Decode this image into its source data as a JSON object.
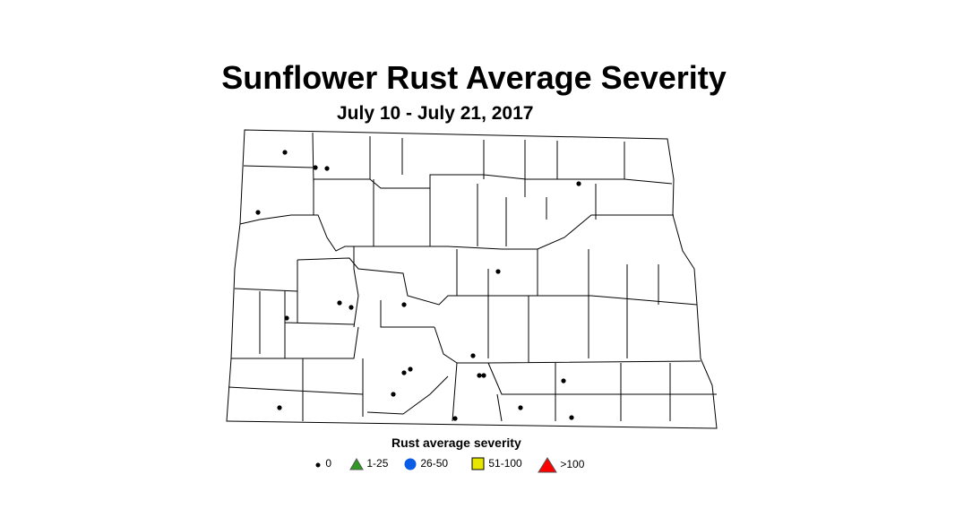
{
  "title": "Sunflower Rust Average Severity",
  "subtitle": "July 10 - July 21, 2017",
  "legend": {
    "title": "Rust average severity",
    "items": [
      {
        "label": "0",
        "shape": "dot",
        "color": "#000000"
      },
      {
        "label": "1-25",
        "shape": "triangle",
        "color": "#2e9a1f"
      },
      {
        "label": "26-50",
        "shape": "circle",
        "color": "#0a5ce6"
      },
      {
        "label": "51-100",
        "shape": "square",
        "color": "#e6e600"
      },
      {
        "label": ">100",
        "shape": "triangle",
        "color": "#ff0000"
      }
    ]
  },
  "sites_severity_category": "0"
}
